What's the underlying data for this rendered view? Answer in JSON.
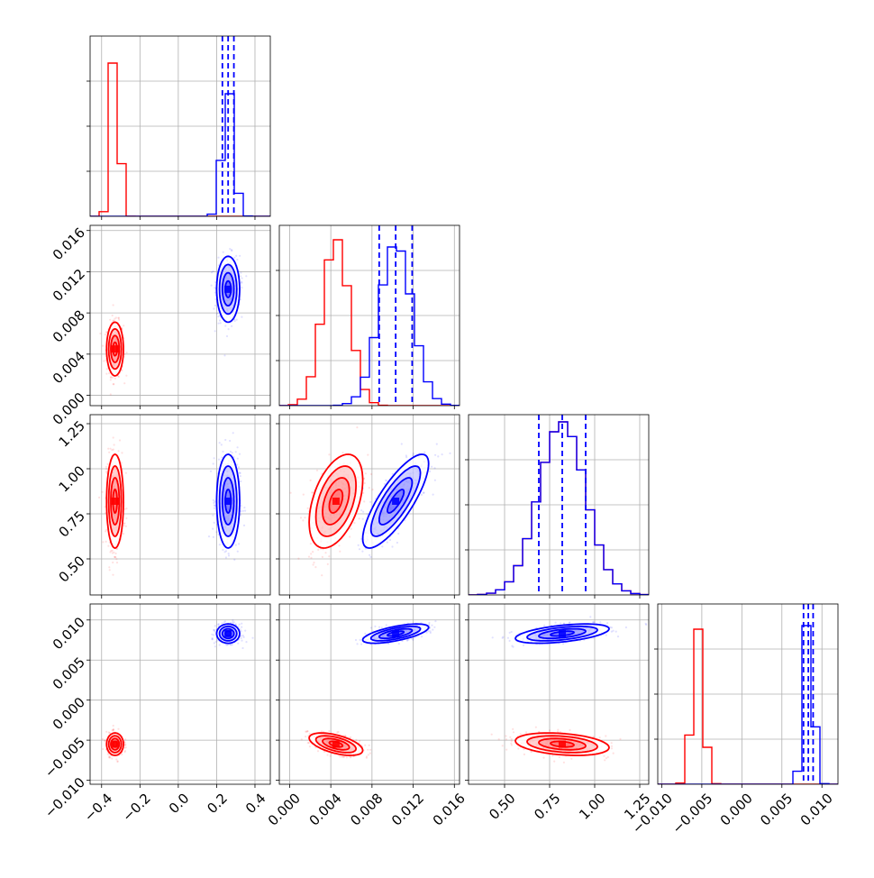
{
  "chart_data": {
    "type": "corner",
    "grid": true,
    "parameters": [
      {
        "range": [
          -0.46,
          0.48
        ],
        "ticks": [
          -0.4,
          -0.2,
          0.0,
          0.2,
          0.4
        ],
        "labels": [
          "−0.4",
          "−0.2",
          "0.0",
          "0.2",
          "0.4"
        ]
      },
      {
        "range": [
          -0.001,
          0.0165
        ],
        "ticks": [
          0.0,
          0.004,
          0.008,
          0.012,
          0.016
        ],
        "labels": [
          "0.000",
          "0.004",
          "0.008",
          "0.012",
          "0.016"
        ]
      },
      {
        "range": [
          0.3,
          1.3
        ],
        "ticks": [
          0.5,
          0.75,
          1.0,
          1.25
        ],
        "labels": [
          "0.50",
          "0.75",
          "1.00",
          "1.25"
        ]
      },
      {
        "range": [
          -0.0105,
          0.012
        ],
        "ticks": [
          -0.01,
          -0.005,
          0.0,
          0.005,
          0.01
        ],
        "labels": [
          "−0.010",
          "−0.005",
          "0.000",
          "0.005",
          "0.010"
        ]
      }
    ],
    "series": [
      {
        "color": "#ff0000",
        "means": [
          -0.33,
          0.0045,
          0.82,
          -0.0055
        ],
        "sds": [
          0.022,
          0.0013,
          0.13,
          0.0007
        ],
        "correlations": [
          {
            "pair": [
              1,
              2
            ],
            "r": 0.45
          },
          {
            "pair": [
              1,
              3
            ],
            "r": -0.55
          },
          {
            "pair": [
              2,
              3
            ],
            "r": -0.3
          }
        ],
        "quantile_lines": false
      },
      {
        "color": "#0000ff",
        "means": [
          0.26,
          0.0103,
          0.82,
          0.0083
        ],
        "sds": [
          0.03,
          0.0016,
          0.13,
          0.0006
        ],
        "correlations": [
          {
            "pair": [
              1,
              2
            ],
            "r": 0.8
          },
          {
            "pair": [
              1,
              3
            ],
            "r": 0.65
          },
          {
            "pair": [
              2,
              3
            ],
            "r": 0.5
          }
        ],
        "quantile_lines": true
      }
    ],
    "histogram_peaks": [
      [
        {
          "color": "#ff0000",
          "peak_fraction": 0.85
        },
        {
          "color": "#0000ff",
          "peak_fraction": 0.68
        }
      ],
      [
        {
          "color": "#ff0000",
          "peak_fraction": 0.92
        },
        {
          "color": "#0000ff",
          "peak_fraction": 0.88
        }
      ],
      [
        {
          "color": "#ff0000",
          "peak_fraction": 0.96
        },
        {
          "color": "#0000ff",
          "peak_fraction": 0.96
        }
      ],
      [
        {
          "color": "#ff0000",
          "peak_fraction": 0.86
        },
        {
          "color": "#0000ff",
          "peak_fraction": 0.88
        }
      ]
    ]
  }
}
